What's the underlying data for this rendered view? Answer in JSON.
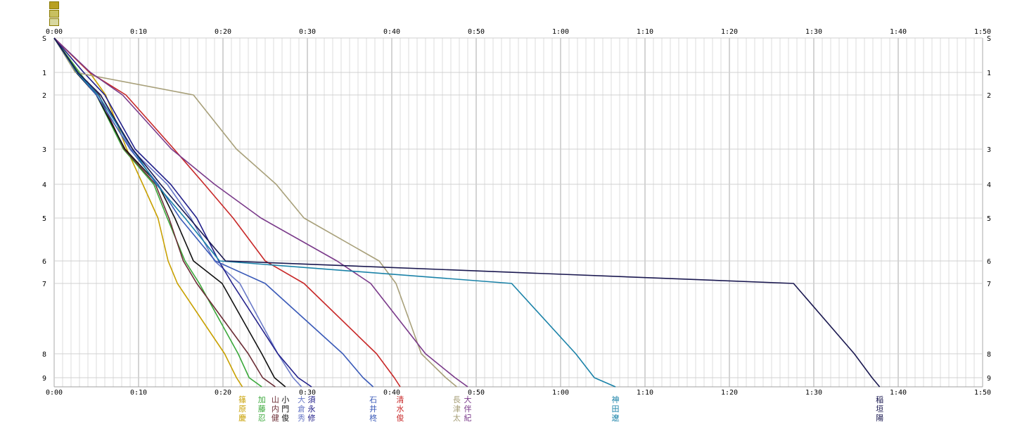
{
  "chart_data": {
    "type": "line",
    "x_unit": "minutes",
    "xlim": [
      0,
      110
    ],
    "x_ticks": [
      "0:00",
      "0:10",
      "0:20",
      "0:30",
      "0:40",
      "0:50",
      "1:00",
      "1:10",
      "1:20",
      "1:30",
      "1:40",
      "1:50"
    ],
    "y_ticks": [
      "S",
      "1",
      "2",
      "3",
      "4",
      "5",
      "6",
      "7",
      "8",
      "9"
    ],
    "grid": true,
    "series": [
      {
        "name": "篠原慶",
        "color": "#c8a000",
        "label_x": 22.3,
        "points": [
          [
            "S",
            0
          ],
          [
            "1",
            4.2
          ],
          [
            "2",
            6.1
          ],
          [
            "3",
            8.6
          ],
          [
            "4",
            10.5
          ],
          [
            "5",
            12.3
          ],
          [
            "6",
            13.5
          ],
          [
            "7",
            14.6
          ],
          [
            "8",
            20.2
          ],
          [
            "9",
            21.6
          ],
          [
            "F",
            22.3
          ]
        ]
      },
      {
        "name": "加藤忍",
        "color": "#3aa83a",
        "label_x": 24.6,
        "points": [
          [
            "S",
            0
          ],
          [
            "1",
            3.0
          ],
          [
            "2",
            5.0
          ],
          [
            "3",
            8.2
          ],
          [
            "4",
            11.8
          ],
          [
            "5",
            13.4
          ],
          [
            "6",
            15.5
          ],
          [
            "7",
            17.2
          ],
          [
            "8",
            21.8
          ],
          [
            "9",
            23.1
          ],
          [
            "F",
            24.6
          ]
        ]
      },
      {
        "name": "山内健",
        "color": "#6b2d35",
        "label_x": 26.2,
        "points": [
          [
            "S",
            0
          ],
          [
            "1",
            2.8
          ],
          [
            "2",
            5.3
          ],
          [
            "3",
            8.3
          ],
          [
            "4",
            12.0
          ],
          [
            "5",
            13.6
          ],
          [
            "6",
            15.3
          ],
          [
            "7",
            16.9
          ],
          [
            "8",
            23.0
          ],
          [
            "9",
            24.7
          ],
          [
            "F",
            26.2
          ]
        ]
      },
      {
        "name": "小門俊",
        "color": "#111111",
        "label_x": 27.4,
        "points": [
          [
            "S",
            0
          ],
          [
            "1",
            2.6
          ],
          [
            "2",
            5.0
          ],
          [
            "3",
            8.4
          ],
          [
            "4",
            12.3
          ],
          [
            "5",
            14.3
          ],
          [
            "6",
            16.5
          ],
          [
            "7",
            19.9
          ],
          [
            "8",
            24.6
          ],
          [
            "9",
            26.1
          ],
          [
            "F",
            27.4
          ]
        ]
      },
      {
        "name": "大倉秀",
        "color": "#6a7ac8",
        "label_x": 29.3,
        "points": [
          [
            "S",
            0
          ],
          [
            "1",
            2.7
          ],
          [
            "2",
            5.5
          ],
          [
            "3",
            9.1
          ],
          [
            "4",
            13.4
          ],
          [
            "5",
            16.2
          ],
          [
            "6",
            19.0
          ],
          [
            "7",
            22.0
          ],
          [
            "8",
            26.5
          ],
          [
            "9",
            28.3
          ],
          [
            "F",
            29.3
          ]
        ]
      },
      {
        "name": "須永修",
        "color": "#22208a",
        "label_x": 30.5,
        "points": [
          [
            "S",
            0
          ],
          [
            "1",
            3.5
          ],
          [
            "2",
            6.0
          ],
          [
            "3",
            9.6
          ],
          [
            "4",
            13.8
          ],
          [
            "5",
            16.9
          ],
          [
            "6",
            19.5
          ],
          [
            "7",
            21.1
          ],
          [
            "8",
            26.5
          ],
          [
            "9",
            28.9
          ],
          [
            "F",
            30.5
          ]
        ]
      },
      {
        "name": "石井柊",
        "color": "#3a5ab8",
        "label_x": 37.8,
        "points": [
          [
            "S",
            0
          ],
          [
            "1",
            2.7
          ],
          [
            "2",
            5.0
          ],
          [
            "3",
            9.0
          ],
          [
            "4",
            12.3
          ],
          [
            "5",
            14.9
          ],
          [
            "6",
            19.1
          ],
          [
            "7",
            25.0
          ],
          [
            "8",
            34.2
          ],
          [
            "9",
            36.6
          ],
          [
            "F",
            37.8
          ]
        ]
      },
      {
        "name": "清水俊",
        "color": "#c82828",
        "label_x": 41.0,
        "points": [
          [
            "S",
            0
          ],
          [
            "1",
            4.2
          ],
          [
            "2",
            8.5
          ],
          [
            "3",
            14.2
          ],
          [
            "4",
            17.8
          ],
          [
            "5",
            21.2
          ],
          [
            "6",
            25.0
          ],
          [
            "7",
            29.6
          ],
          [
            "8",
            38.2
          ],
          [
            "9",
            40.3
          ],
          [
            "F",
            41.0
          ]
        ]
      },
      {
        "name": "長津太",
        "color": "#a8a07a",
        "label_x": 47.7,
        "points": [
          [
            "S",
            0
          ],
          [
            "1",
            2.5
          ],
          [
            "2",
            16.5
          ],
          [
            "3",
            21.6
          ],
          [
            "4",
            26.3
          ],
          [
            "5",
            29.6
          ],
          [
            "6",
            38.5
          ],
          [
            "7",
            40.5
          ],
          [
            "8",
            43.5
          ],
          [
            "9",
            46.4
          ],
          [
            "F",
            47.7
          ]
        ]
      },
      {
        "name": "大伴紀",
        "color": "#7a3a8a",
        "label_x": 49.0,
        "points": [
          [
            "S",
            0
          ],
          [
            "1",
            4.3
          ],
          [
            "2",
            8.1
          ],
          [
            "3",
            13.9
          ],
          [
            "4",
            19.0
          ],
          [
            "5",
            24.5
          ],
          [
            "6",
            33.5
          ],
          [
            "7",
            37.5
          ],
          [
            "8",
            44.0
          ],
          [
            "9",
            47.5
          ],
          [
            "F",
            49.0
          ]
        ]
      },
      {
        "name": "神田遼",
        "color": "#1a82a8",
        "label_x": 66.5,
        "points": [
          [
            "S",
            0
          ],
          [
            "1",
            2.7
          ],
          [
            "2",
            5.2
          ],
          [
            "3",
            9.3
          ],
          [
            "4",
            12.1
          ],
          [
            "5",
            15.5
          ],
          [
            "6",
            19.6
          ],
          [
            "7",
            54.2
          ],
          [
            "8",
            61.8
          ],
          [
            "9",
            64.0
          ],
          [
            "F",
            66.5
          ]
        ]
      },
      {
        "name": "稲垣陽",
        "color": "#1a1850",
        "label_x": 97.8,
        "points": [
          [
            "S",
            0
          ],
          [
            "1",
            2.8
          ],
          [
            "2",
            5.5
          ],
          [
            "3",
            9.3
          ],
          [
            "4",
            12.6
          ],
          [
            "5",
            16.0
          ],
          [
            "6",
            20.3
          ],
          [
            "7",
            87.6
          ],
          [
            "8",
            94.8
          ],
          [
            "9",
            96.9
          ],
          [
            "F",
            97.8
          ]
        ]
      }
    ]
  },
  "legend_swatches": [
    "#b8a020",
    "#c8c060",
    "#d8d8a0"
  ]
}
